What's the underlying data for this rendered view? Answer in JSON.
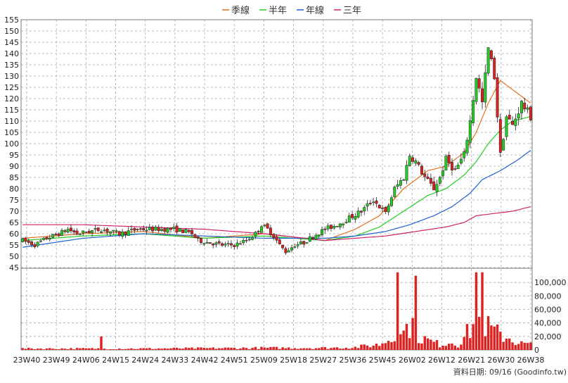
{
  "legend": [
    {
      "name": "季線",
      "color": "#e07020"
    },
    {
      "name": "半年",
      "color": "#22cc22"
    },
    {
      "name": "年線",
      "color": "#2060d0"
    },
    {
      "name": "三年",
      "color": "#d0206a"
    }
  ],
  "credit": "資料日期: 09/16  (Goodinfo.tw)",
  "chart_data": {
    "type": "candlestick",
    "grid": true,
    "legend_position": "top-center",
    "price_axis": {
      "ylim": [
        45,
        155
      ],
      "ticks": [
        45,
        50,
        55,
        60,
        65,
        70,
        75,
        80,
        85,
        90,
        95,
        100,
        105,
        110,
        115,
        120,
        125,
        130,
        135,
        140,
        145,
        150,
        155
      ]
    },
    "volume_axis": {
      "ylim": [
        0,
        120000
      ],
      "ticks": [
        0,
        20000,
        40000,
        60000,
        80000,
        100000
      ],
      "tick_labels": [
        "0",
        "20,000",
        "40,000",
        "60,000",
        "80,000",
        "100,000"
      ]
    },
    "x_labels": [
      "23W40",
      "23W49",
      "24W06",
      "24W15",
      "24W24",
      "24W33",
      "24W42",
      "24W51",
      "25W09",
      "25W18",
      "25W27",
      "25W36",
      "25W45",
      "26W02",
      "26W12",
      "26W21",
      "26W30",
      "26W38"
    ],
    "price_anchors": [
      [
        0,
        57
      ],
      [
        4,
        55
      ],
      [
        8,
        58
      ],
      [
        12,
        60
      ],
      [
        15,
        62
      ],
      [
        18,
        60
      ],
      [
        22,
        61
      ],
      [
        26,
        62
      ],
      [
        29,
        61
      ],
      [
        32,
        60
      ],
      [
        35,
        61
      ],
      [
        38,
        62
      ],
      [
        42,
        62
      ],
      [
        46,
        62
      ],
      [
        50,
        62
      ],
      [
        54,
        61
      ],
      [
        56,
        60
      ],
      [
        58,
        57
      ],
      [
        62,
        56
      ],
      [
        66,
        55
      ],
      [
        70,
        55
      ],
      [
        74,
        57
      ],
      [
        77,
        60
      ],
      [
        79,
        64
      ],
      [
        81,
        62
      ],
      [
        83,
        59
      ],
      [
        85,
        55
      ],
      [
        87,
        52
      ],
      [
        90,
        55
      ],
      [
        93,
        56
      ],
      [
        96,
        59
      ],
      [
        100,
        62
      ],
      [
        104,
        64
      ],
      [
        108,
        67
      ],
      [
        112,
        70
      ],
      [
        116,
        75
      ],
      [
        120,
        69
      ],
      [
        123,
        80
      ],
      [
        126,
        85
      ],
      [
        128,
        95
      ],
      [
        130,
        92
      ],
      [
        133,
        85
      ],
      [
        136,
        80
      ],
      [
        138,
        85
      ],
      [
        140,
        93
      ],
      [
        143,
        88
      ],
      [
        146,
        95
      ],
      [
        148,
        110
      ],
      [
        150,
        130
      ],
      [
        152,
        118
      ],
      [
        154,
        142
      ],
      [
        156,
        130
      ],
      [
        158,
        95
      ],
      [
        160,
        112
      ],
      [
        162,
        108
      ],
      [
        165,
        118
      ],
      [
        168,
        112
      ]
    ],
    "ma_lines": {
      "季線": [
        [
          0,
          58
        ],
        [
          20,
          60
        ],
        [
          40,
          61
        ],
        [
          60,
          58
        ],
        [
          80,
          60
        ],
        [
          100,
          57
        ],
        [
          110,
          62
        ],
        [
          118,
          68
        ],
        [
          126,
          80
        ],
        [
          134,
          88
        ],
        [
          140,
          90
        ],
        [
          146,
          96
        ],
        [
          150,
          105
        ],
        [
          154,
          118
        ],
        [
          158,
          128
        ],
        [
          162,
          124
        ],
        [
          168,
          118
        ]
      ],
      "半年": [
        [
          0,
          57
        ],
        [
          20,
          59
        ],
        [
          40,
          60
        ],
        [
          60,
          58
        ],
        [
          80,
          59
        ],
        [
          100,
          57
        ],
        [
          110,
          59
        ],
        [
          118,
          63
        ],
        [
          126,
          70
        ],
        [
          134,
          77
        ],
        [
          140,
          80
        ],
        [
          146,
          86
        ],
        [
          150,
          92
        ],
        [
          154,
          100
        ],
        [
          158,
          106
        ],
        [
          162,
          110
        ],
        [
          168,
          112
        ]
      ],
      "年線": [
        [
          0,
          54
        ],
        [
          20,
          58
        ],
        [
          40,
          60
        ],
        [
          60,
          59
        ],
        [
          80,
          58
        ],
        [
          100,
          58
        ],
        [
          110,
          59
        ],
        [
          120,
          61
        ],
        [
          128,
          64
        ],
        [
          136,
          68
        ],
        [
          142,
          72
        ],
        [
          148,
          78
        ],
        [
          152,
          84
        ],
        [
          158,
          88
        ],
        [
          164,
          93
        ],
        [
          168,
          97
        ]
      ],
      "三年": [
        [
          0,
          64
        ],
        [
          20,
          64
        ],
        [
          40,
          63
        ],
        [
          60,
          62
        ],
        [
          80,
          60
        ],
        [
          100,
          57
        ],
        [
          110,
          58
        ],
        [
          120,
          59
        ],
        [
          130,
          61
        ],
        [
          140,
          63
        ],
        [
          146,
          65
        ],
        [
          150,
          68
        ],
        [
          156,
          69
        ],
        [
          162,
          70
        ],
        [
          168,
          72
        ]
      ]
    },
    "volume_profile": [
      [
        0,
        2
      ],
      [
        40,
        2
      ],
      [
        80,
        3
      ],
      [
        100,
        3
      ],
      [
        110,
        4
      ],
      [
        118,
        8
      ],
      [
        122,
        18
      ],
      [
        124,
        45
      ],
      [
        126,
        25
      ],
      [
        128,
        40
      ],
      [
        130,
        22
      ],
      [
        134,
        14
      ],
      [
        138,
        8
      ],
      [
        142,
        12
      ],
      [
        144,
        8
      ],
      [
        148,
        30
      ],
      [
        150,
        45
      ],
      [
        152,
        40
      ],
      [
        155,
        30
      ],
      [
        158,
        22
      ],
      [
        161,
        18
      ],
      [
        164,
        10
      ],
      [
        168,
        8
      ]
    ],
    "volume_spikes": [
      [
        26,
        20000
      ],
      [
        124,
        115000
      ],
      [
        130,
        110000
      ],
      [
        150,
        115000
      ],
      [
        152,
        115000
      ]
    ]
  }
}
